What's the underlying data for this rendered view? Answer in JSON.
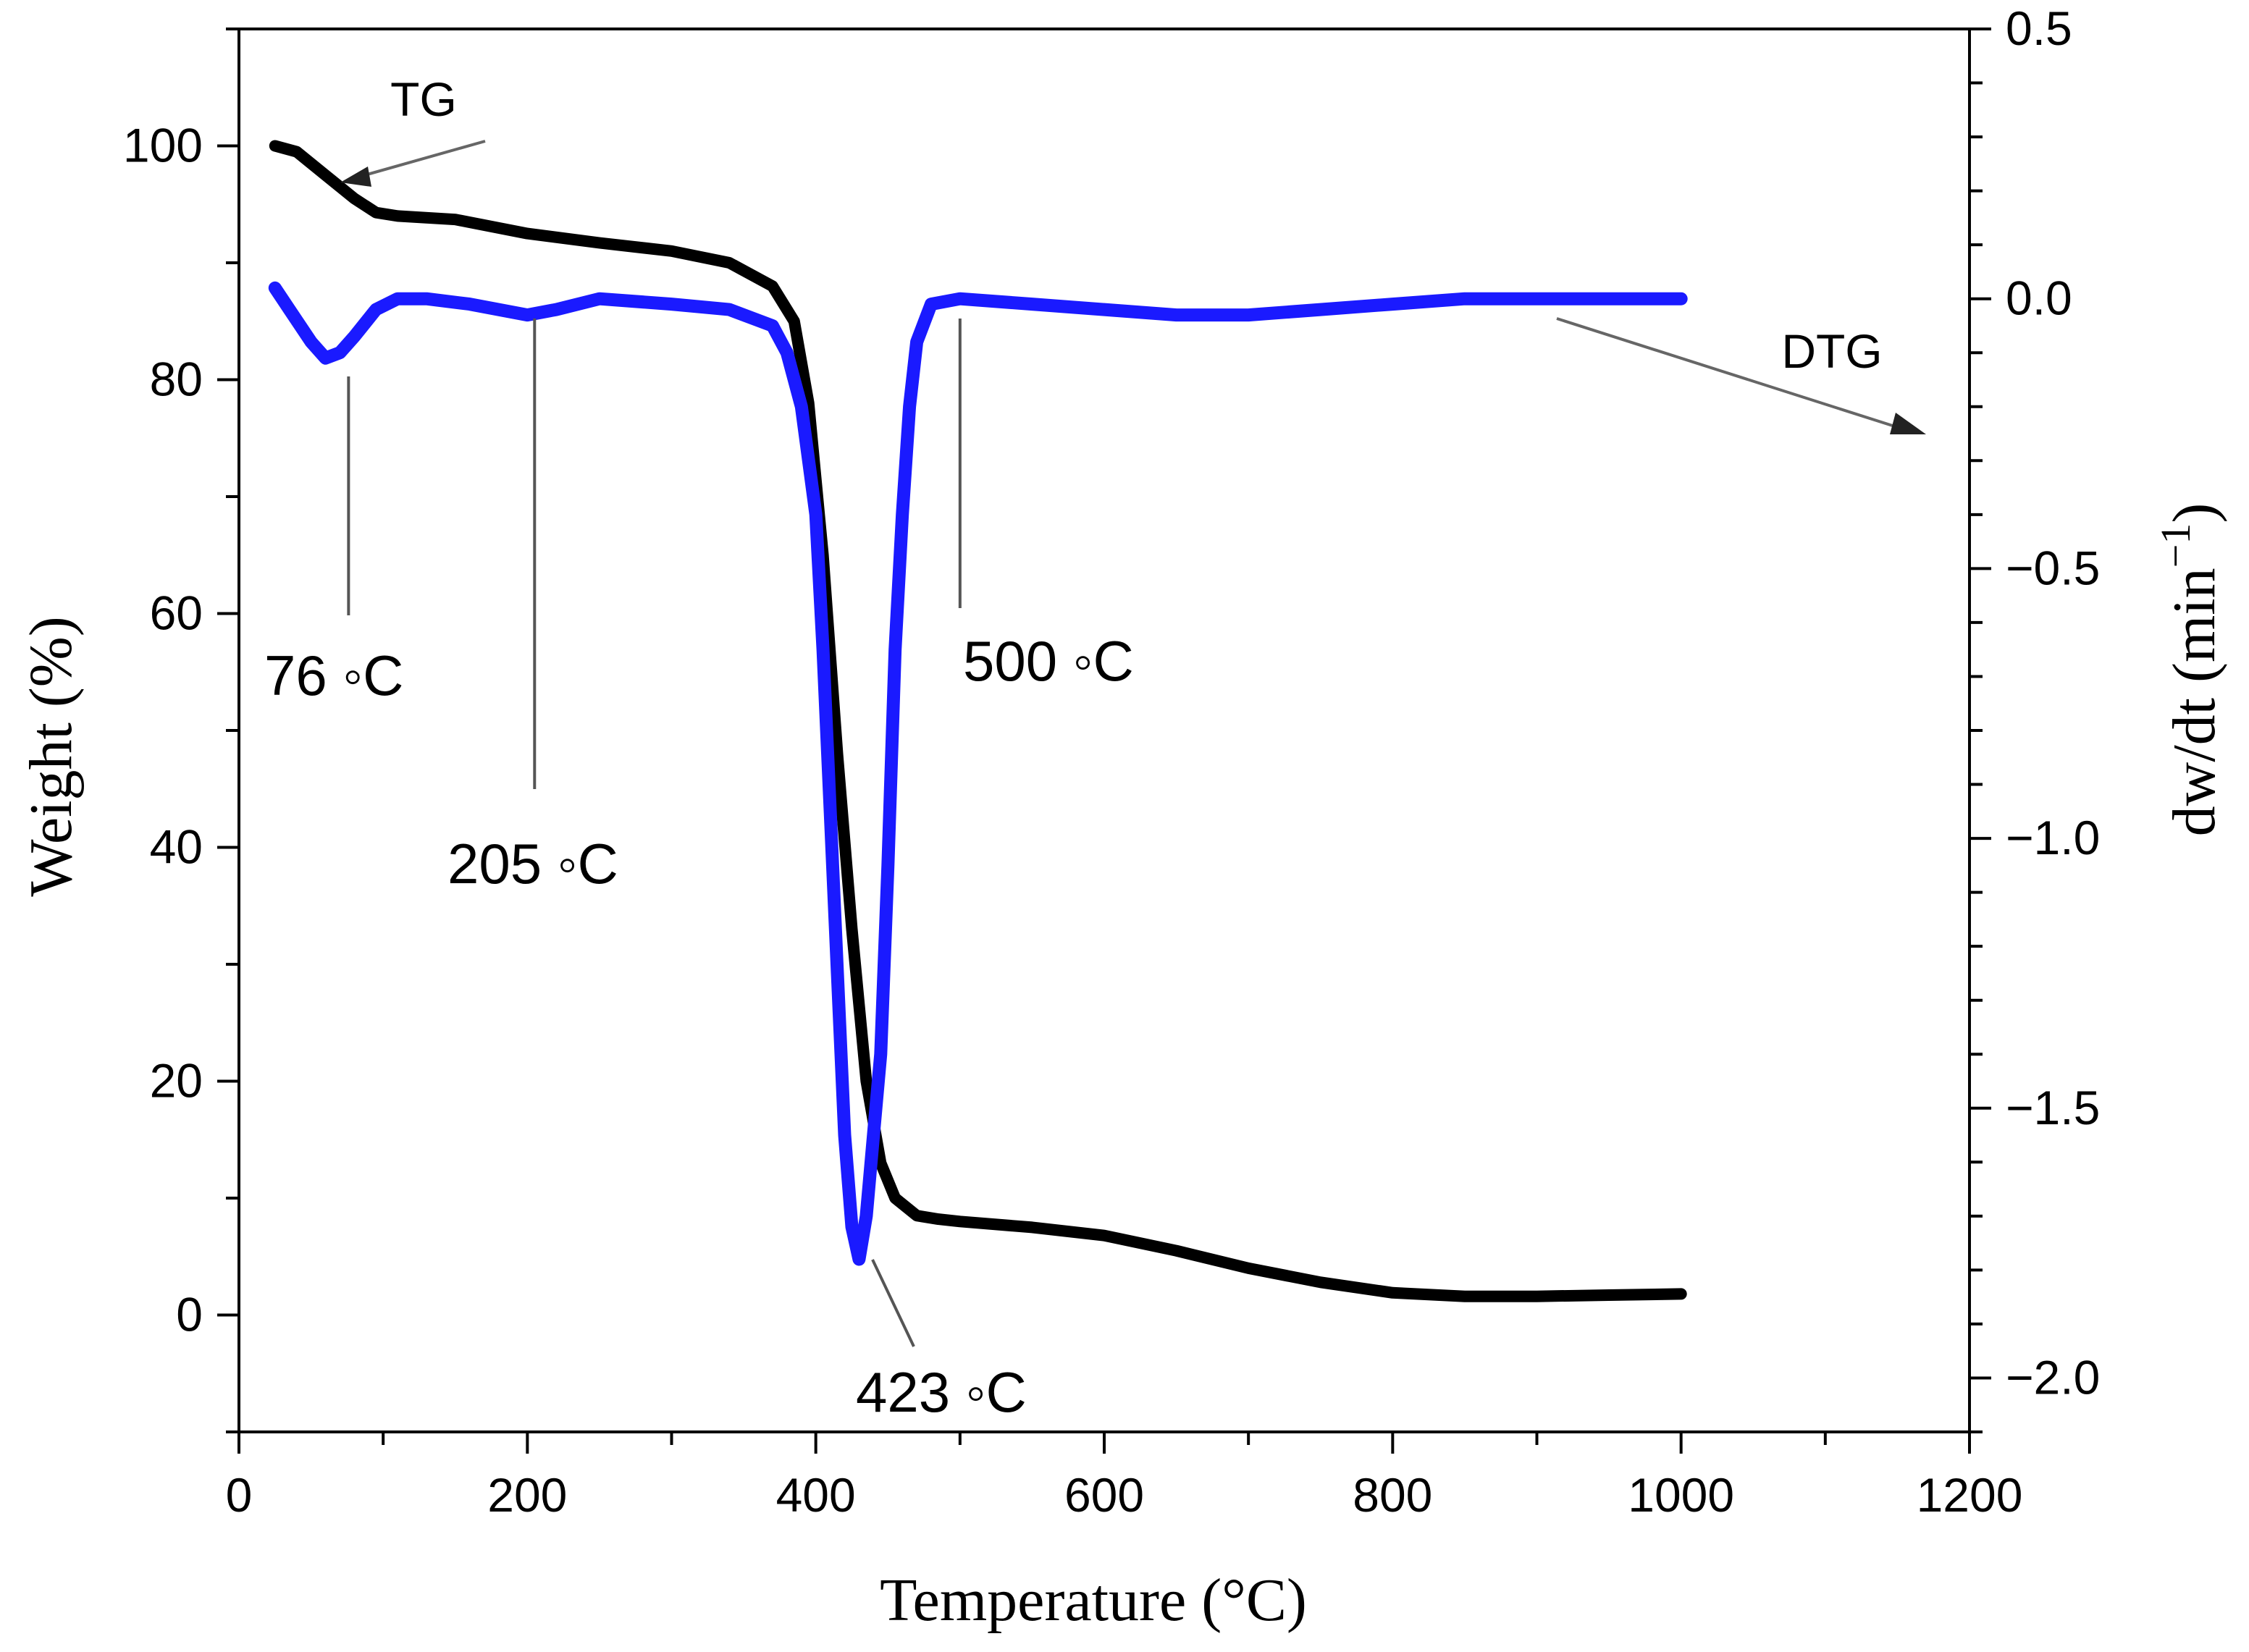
{
  "chart_data": {
    "type": "line",
    "title": "",
    "xlabel": "Temperature (°C)",
    "ylabel": "Weight (%)",
    "y2label": "dw/dt (min⁻¹)",
    "y2label_base": "dw/dt (min",
    "y2label_sup": "−1",
    "y2label_close": ")",
    "xlim": [
      0,
      1200
    ],
    "ylim": [
      -10,
      110
    ],
    "y2lim": [
      -2.1,
      0.5
    ],
    "x_ticks": [
      "0",
      "200",
      "400",
      "600",
      "800",
      "1000",
      "1200"
    ],
    "y_ticks": [
      "0",
      "20",
      "40",
      "60",
      "80",
      "100"
    ],
    "y2_ticks": [
      "0.5",
      "0.0",
      "−0.5",
      "−1.0",
      "−1.5",
      "−2.0"
    ],
    "series": [
      {
        "name": "TG",
        "axis": "left",
        "color": "#000000",
        "x": [
          25,
          40,
          60,
          80,
          95,
          110,
          150,
          200,
          250,
          300,
          340,
          370,
          385,
          395,
          405,
          415,
          425,
          435,
          445,
          455,
          470,
          485,
          500,
          550,
          600,
          650,
          700,
          750,
          800,
          850,
          900,
          950,
          1000
        ],
        "y": [
          100,
          99.5,
          97.5,
          95.5,
          94.3,
          94,
          93.7,
          92.5,
          91.7,
          91,
          90,
          88,
          85,
          78,
          65,
          48,
          33,
          20,
          13,
          10,
          8.5,
          8.2,
          8,
          7.5,
          6.8,
          5.5,
          4,
          2.8,
          1.9,
          1.6,
          1.6,
          1.7,
          1.8
        ]
      },
      {
        "name": "DTG",
        "axis": "right",
        "color": "#1a1aff",
        "x": [
          25,
          35,
          50,
          60,
          70,
          80,
          95,
          110,
          130,
          160,
          180,
          200,
          220,
          250,
          300,
          340,
          370,
          380,
          390,
          400,
          405,
          410,
          415,
          420,
          425,
          430,
          435,
          440,
          445,
          450,
          455,
          460,
          465,
          470,
          480,
          500,
          550,
          600,
          650,
          700,
          750,
          800,
          850,
          900,
          950,
          1000
        ],
        "y": [
          0.02,
          -0.02,
          -0.08,
          -0.11,
          -0.1,
          -0.07,
          -0.02,
          0.0,
          0.0,
          -0.01,
          -0.02,
          -0.03,
          -0.02,
          0.0,
          -0.01,
          -0.02,
          -0.05,
          -0.1,
          -0.2,
          -0.4,
          -0.65,
          -0.95,
          -1.25,
          -1.55,
          -1.72,
          -1.78,
          -1.7,
          -1.55,
          -1.4,
          -1.05,
          -0.65,
          -0.4,
          -0.2,
          -0.08,
          -0.01,
          0.0,
          -0.01,
          -0.02,
          -0.03,
          -0.03,
          -0.02,
          -0.01,
          0.0,
          0.0,
          0.0,
          0.0
        ]
      }
    ],
    "annotations": [
      {
        "name": "tg",
        "text": "TG"
      },
      {
        "name": "dtg",
        "text": "DTG"
      },
      {
        "name": "peak-76",
        "text": "76 ◦C",
        "x": 76
      },
      {
        "name": "peak-205",
        "text": "205 ◦C",
        "x": 205
      },
      {
        "name": "peak-423",
        "text": "423 ◦C",
        "x": 423
      },
      {
        "name": "peak-500",
        "text": "500 ◦C",
        "x": 500
      }
    ]
  }
}
